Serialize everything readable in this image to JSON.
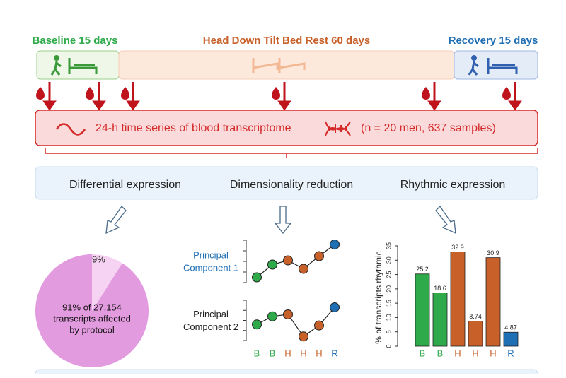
{
  "phases": [
    {
      "label": "Baseline 15 days",
      "color": "#2eaa4a"
    },
    {
      "label": "Head Down Tilt Bed Rest 60 days",
      "color": "#c8602a"
    },
    {
      "label": "Recovery 15 days",
      "color": "#1f6fb5"
    }
  ],
  "banner": {
    "title": "24-h time series of blood transcriptome",
    "note": "(n = 20 men, 637 samples)"
  },
  "analyses": [
    "Differential expression",
    "Dimensionality reduction",
    "Rhythmic expression"
  ],
  "pie_chart": {
    "type": "pie",
    "slices": [
      {
        "value": 91,
        "color": "#e39be0"
      },
      {
        "value": 9,
        "label": "9%",
        "color": "#f6d3f3"
      }
    ],
    "caption_lines": [
      "91% of 27,154",
      "transcripts affected",
      "by protocol"
    ]
  },
  "pc_chart": {
    "type": "line",
    "categories": [
      "B",
      "B",
      "H",
      "H",
      "H",
      "R"
    ],
    "colors": [
      "#2eaa4a",
      "#2eaa4a",
      "#c8602a",
      "#c8602a",
      "#c8602a",
      "#1f6fb5"
    ],
    "ylim": [
      0,
      4
    ],
    "series": [
      {
        "name_lines": [
          "Principal",
          "Component 1"
        ],
        "name_color": "#1f6fb5",
        "values": [
          0.5,
          1.7,
          2.1,
          1.3,
          2.5,
          3.6
        ]
      },
      {
        "name_lines": [
          "Principal",
          "Component 2"
        ],
        "name_color": "#222222",
        "values": [
          1.6,
          2.4,
          2.6,
          0.4,
          1.5,
          3.3
        ]
      }
    ]
  },
  "bar_chart": {
    "type": "bar",
    "y_label": "% of transcripts rhythmic",
    "categories": [
      "B",
      "B",
      "H",
      "H",
      "H",
      "R"
    ],
    "colors": [
      "#2eaa4a",
      "#2eaa4a",
      "#c8602a",
      "#c8602a",
      "#c8602a",
      "#1f6fb5"
    ],
    "values": [
      25.2,
      18.6,
      32.9,
      8.74,
      30.9,
      4.87
    ],
    "ylim": [
      0,
      35
    ],
    "yticks": [
      0,
      5,
      10,
      15,
      20,
      25,
      30,
      35
    ]
  }
}
